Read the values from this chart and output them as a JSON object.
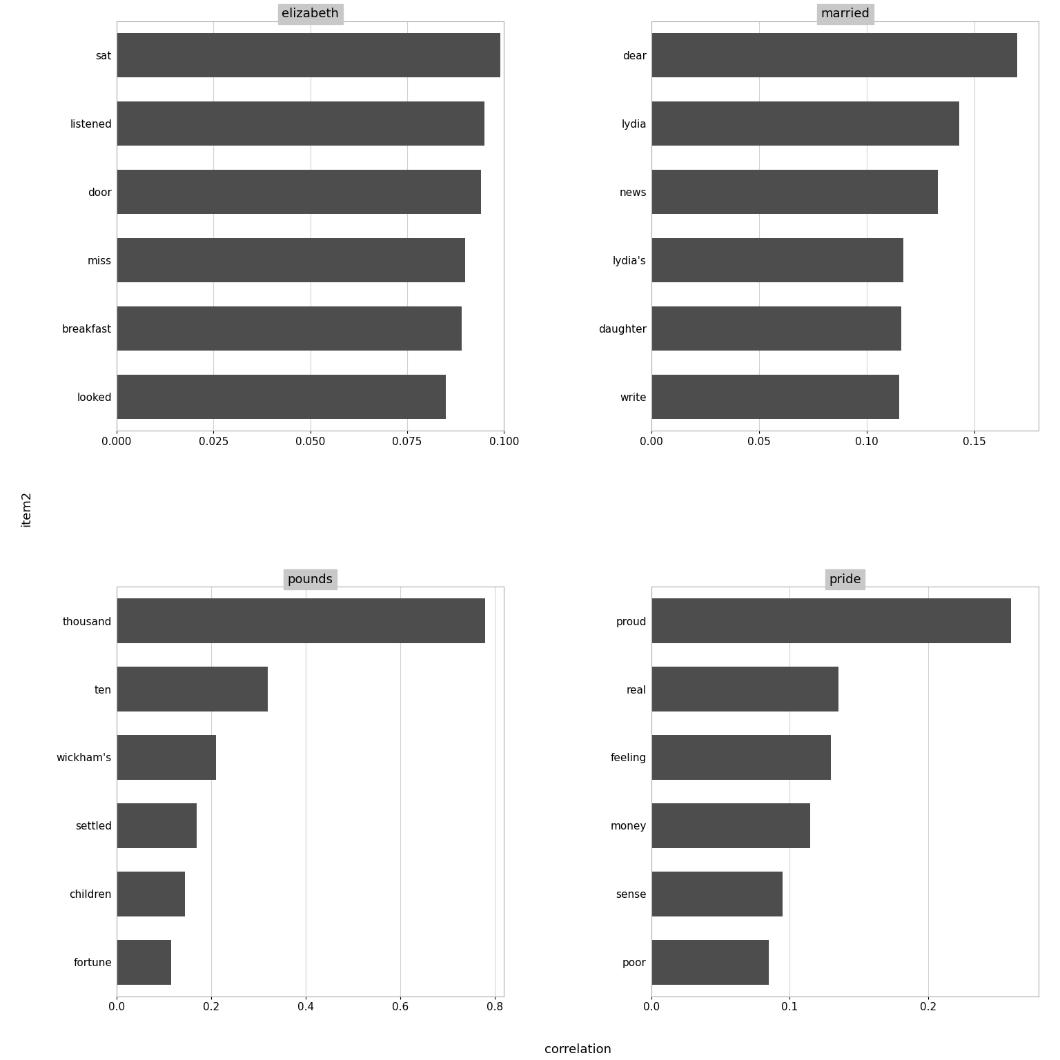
{
  "panels": [
    {
      "title": "elizabeth",
      "items": [
        "sat",
        "listened",
        "door",
        "miss",
        "breakfast",
        "looked"
      ],
      "values": [
        0.099,
        0.095,
        0.094,
        0.09,
        0.089,
        0.085
      ],
      "xlim": [
        0,
        0.1
      ],
      "xticks": [
        0.0,
        0.025,
        0.05,
        0.075,
        0.1
      ],
      "xticklabels": [
        "0.000",
        "0.025",
        "0.050",
        "0.075",
        "0.100"
      ]
    },
    {
      "title": "married",
      "items": [
        "dear",
        "lydia",
        "news",
        "lydia's",
        "daughter",
        "write"
      ],
      "values": [
        0.17,
        0.143,
        0.133,
        0.117,
        0.116,
        0.115
      ],
      "xlim": [
        0,
        0.18
      ],
      "xticks": [
        0.0,
        0.05,
        0.1,
        0.15
      ],
      "xticklabels": [
        "0.00",
        "0.05",
        "0.10",
        "0.15"
      ]
    },
    {
      "title": "pounds",
      "items": [
        "thousand",
        "ten",
        "wickham's",
        "settled",
        "children",
        "fortune"
      ],
      "values": [
        0.78,
        0.32,
        0.21,
        0.17,
        0.145,
        0.115
      ],
      "xlim": [
        0,
        0.82
      ],
      "xticks": [
        0.0,
        0.2,
        0.4,
        0.6,
        0.8
      ],
      "xticklabels": [
        "0.0",
        "0.2",
        "0.4",
        "0.6",
        "0.8"
      ]
    },
    {
      "title": "pride",
      "items": [
        "proud",
        "real",
        "feeling",
        "money",
        "sense",
        "poor"
      ],
      "values": [
        0.26,
        0.135,
        0.13,
        0.115,
        0.095,
        0.085
      ],
      "xlim": [
        0,
        0.28
      ],
      "xticks": [
        0.0,
        0.1,
        0.2
      ],
      "xticklabels": [
        "0.0",
        "0.1",
        "0.2"
      ]
    }
  ],
  "bar_color": "#4d4d4d",
  "background_color": "#ffffff",
  "panel_header_color": "#c8c8c8",
  "grid_color": "#d3d3d3",
  "ylabel": "item2",
  "xlabel": "correlation",
  "title_fontsize": 13,
  "label_fontsize": 13,
  "tick_fontsize": 11
}
